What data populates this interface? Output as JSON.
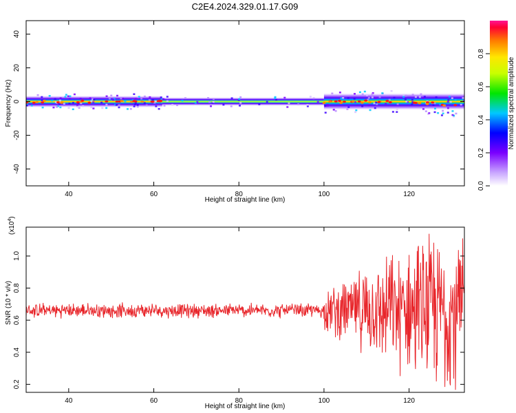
{
  "title": "C2E4.2024.329.01.17.G09",
  "colorbar": {
    "label": "Normalized spectral amplitude",
    "ticks": [
      "0.0",
      "0.2",
      "0.4",
      "0.6",
      "0.8"
    ],
    "range": [
      0,
      1
    ]
  },
  "chart_data": [
    {
      "type": "heatmap",
      "panel": "spectrogram",
      "xlabel": "Height of straight line (km)",
      "ylabel": "Frequency (Hz)",
      "xlim": [
        30,
        133
      ],
      "ylim": [
        -50,
        48
      ],
      "xticks": [
        40,
        60,
        80,
        100,
        120
      ],
      "yticks": [
        40,
        20,
        0,
        -20,
        -40
      ],
      "band": {
        "description_center_freq_hz": 0,
        "segments": [
          {
            "x_start": 30,
            "x_end": 62,
            "halfwidth_hz": 3.5,
            "peak_level": 1.0
          },
          {
            "x_start": 62,
            "x_end": 100,
            "halfwidth_hz": 2.5,
            "peak_level": 0.6
          },
          {
            "x_start": 100,
            "x_end": 133,
            "halfwidth_hz": 5,
            "peak_level": 1.0
          }
        ],
        "end_drift_hz": -3
      }
    },
    {
      "type": "line",
      "panel": "snr",
      "xlabel": "Height of straight line (km)",
      "ylabel": "SNR (10 * v/v)",
      "scale_label": "(x10",
      "scale_exp": "4",
      "scale_close": ")",
      "xlim": [
        30,
        133
      ],
      "ylim": [
        0.15,
        1.18
      ],
      "xticks": [
        40,
        60,
        80,
        100,
        120
      ],
      "yticks": [
        "0.2",
        "0.4",
        "0.6",
        "0.8",
        "1.0"
      ],
      "color": "#e8262b",
      "series": [
        {
          "segments": [
            {
              "x_start": 30,
              "x_end": 100,
              "mean": 0.66,
              "noise": 0.035
            },
            {
              "x_start": 100,
              "x_end": 133,
              "mean": 0.66,
              "noise_start": 0.1,
              "noise_end": 0.45
            }
          ],
          "points_per_km": 10
        }
      ]
    }
  ]
}
